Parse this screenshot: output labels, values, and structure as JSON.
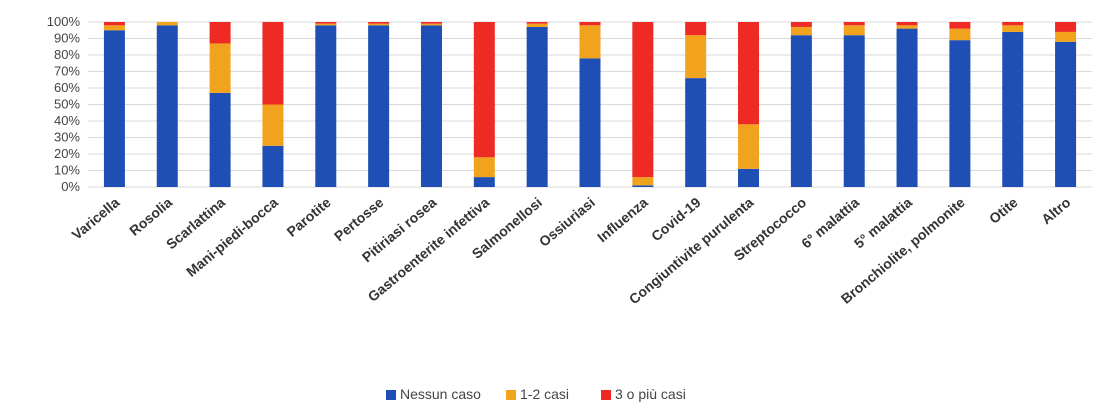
{
  "chart_data": {
    "type": "bar",
    "stacked": true,
    "categories": [
      "Varicella",
      "Rosolia",
      "Scarlattina",
      "Mani-piedi-bocca",
      "Parotite",
      "Pertosse",
      "Pitiriasi rosea",
      "Gastroenterite infettiva",
      "Salmonellosi",
      "Ossiuriasi",
      "Influenza",
      "Covid-19",
      "Congiuntivite purulenta",
      "Streptococco",
      "6° malattia",
      "5° malattia",
      "Bronchiolite, polmonite",
      "Otite",
      "Altro"
    ],
    "series": [
      {
        "name": "Nessun caso",
        "color": "#1f4fb4",
        "values": [
          95,
          98,
          57,
          25,
          98,
          98,
          98,
          6,
          97,
          78,
          1,
          66,
          11,
          92,
          92,
          96,
          89,
          94,
          88
        ]
      },
      {
        "name": "1-2 casi",
        "color": "#f2a31d",
        "values": [
          3,
          2,
          30,
          25,
          1,
          1,
          1,
          12,
          2,
          20,
          5,
          26,
          27,
          5,
          6,
          2,
          7,
          4,
          6
        ]
      },
      {
        "name": "3 o più casi",
        "color": "#ee2a24",
        "values": [
          2,
          0,
          13,
          50,
          1,
          1,
          1,
          82,
          1,
          2,
          94,
          8,
          62,
          3,
          2,
          2,
          4,
          2,
          6
        ]
      }
    ],
    "title": "",
    "xlabel": "",
    "ylabel": "",
    "ylim": [
      0,
      100
    ],
    "yticks": [
      "0%",
      "10%",
      "20%",
      "30%",
      "40%",
      "50%",
      "60%",
      "70%",
      "80%",
      "90%",
      "100%"
    ],
    "grid": true,
    "legend_position": "bottom"
  }
}
